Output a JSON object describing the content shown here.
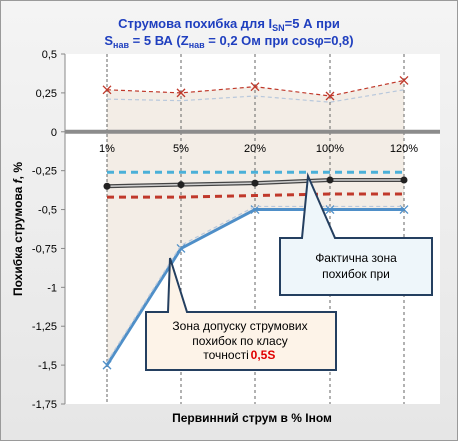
{
  "chart_data": {
    "type": "line",
    "title_line1": "Струмова  похибка для I",
    "title_line1_sub": "SN",
    "title_line1_end": "=5 А  при",
    "title_line2_a": "S",
    "title_line2_sub_a": "нав",
    "title_line2_b": " = 5 ВА (Z",
    "title_line2_sub_b": "нав",
    "title_line2_c": " = 0,2 Ом при cosφ=0,8)",
    "xlabel": "Первинний струм в % Іном",
    "ylabel_a": "Похибка струмова  ",
    "ylabel_f": "f",
    "ylabel_b": ", %",
    "categories": [
      "1%",
      "5%",
      "20%",
      "100%",
      "120%"
    ],
    "ylim": [
      -1.75,
      0.5
    ],
    "yticks": [
      "0,5",
      "0,25",
      "0",
      "-0,25",
      "-0,5",
      "-0,75",
      "-1",
      "-1,25",
      "-1,5",
      "-1,75"
    ],
    "ytick_values": [
      0.5,
      0.25,
      0,
      -0.25,
      -0.5,
      -0.75,
      -1,
      -1.25,
      -1.5,
      -1.75
    ],
    "series": [
      {
        "values": [
          0.27,
          0.25,
          0.29,
          0.23,
          0.33
        ],
        "color": "#c0392b",
        "style": "dashed-thin",
        "marker": "x"
      },
      {
        "values": [
          0.21,
          0.2,
          0.23,
          0.19,
          0.27
        ],
        "color": "#b8c8dc",
        "style": "dashed-thin"
      },
      {
        "values": [
          -0.26,
          -0.26,
          -0.26,
          -0.26,
          -0.26
        ],
        "color": "#4ab0d8",
        "style": "dashed"
      },
      {
        "values": [
          -0.35,
          -0.34,
          -0.33,
          -0.31,
          -0.31
        ],
        "color": "#444444",
        "style": "solid-thick",
        "marker": "dot"
      },
      {
        "values": [
          -0.42,
          -0.42,
          -0.41,
          -0.4,
          -0.4
        ],
        "color": "#c0392b",
        "style": "dashed"
      },
      {
        "values": [
          -1.5,
          -0.75,
          -0.5,
          -0.5,
          -0.5
        ],
        "color": "#4f8fc8",
        "style": "solid",
        "marker": "x"
      },
      {
        "values": [
          -1.48,
          -0.73,
          -0.48,
          -0.48,
          -0.48
        ],
        "color": "#b8c8dc",
        "style": "dashed-thin"
      }
    ],
    "grid": "vertical dashed",
    "callouts": {
      "actual_zone": {
        "line1": "Фактична зона",
        "line2": "похибок при"
      },
      "tolerance_zone": {
        "line1": "Зона допуску струмових",
        "line2": "похибок по класу",
        "line3": "точності",
        "class_value": "0,5S"
      }
    }
  }
}
